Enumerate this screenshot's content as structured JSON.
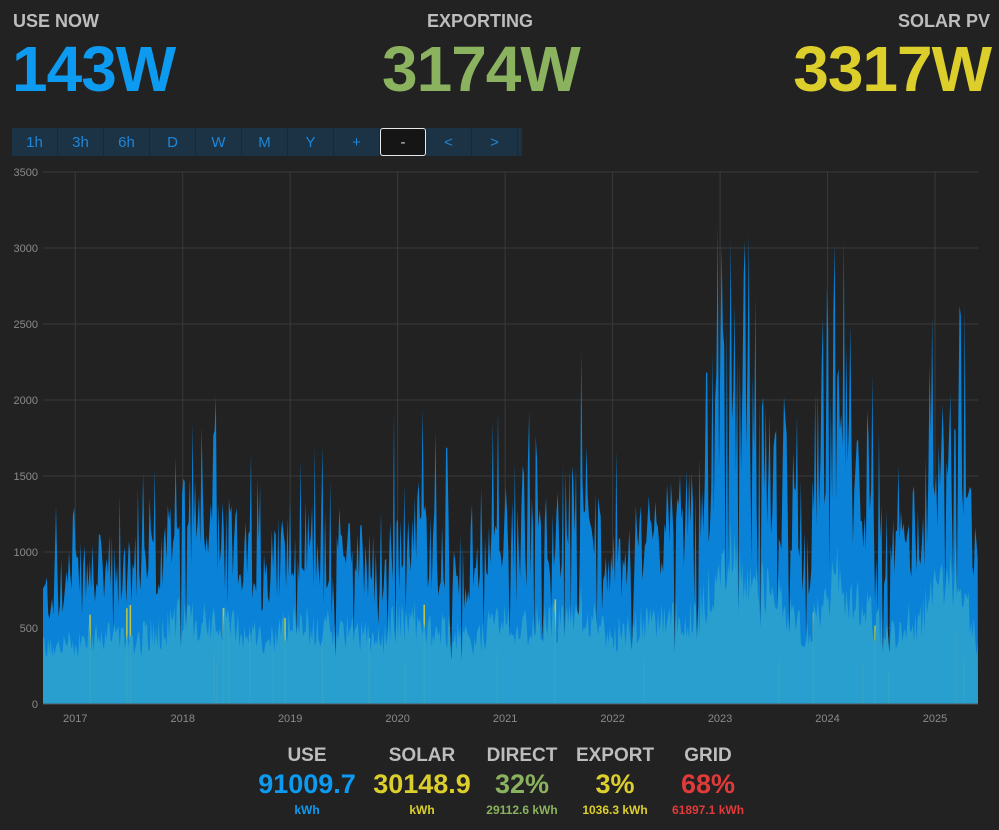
{
  "header": {
    "use": {
      "label": "USE NOW",
      "value": "143W",
      "color": "#0d9bf1"
    },
    "export": {
      "label": "EXPORTING",
      "value": "3174W",
      "color": "#8bb25e"
    },
    "solar": {
      "label": "SOLAR PV",
      "value": "3317W",
      "color": "#dccf2c"
    }
  },
  "timebar": {
    "buttons": [
      "1h",
      "3h",
      "6h",
      "D",
      "W",
      "M",
      "Y",
      "+",
      "-",
      "<",
      ">"
    ],
    "active": "-"
  },
  "chart_data": {
    "type": "area",
    "y_ticks": [
      "0",
      "500",
      "1000",
      "1500",
      "2000",
      "2500",
      "3000",
      "3500"
    ],
    "x_ticks": [
      "2017",
      "2018",
      "2019",
      "2020",
      "2021",
      "2022",
      "2023",
      "2024",
      "2025"
    ],
    "ylim": [
      0,
      3500
    ],
    "xlim": [
      2016.7,
      2025.4
    ],
    "grid": true,
    "series": [
      {
        "color": "#0a82d8"
      },
      {
        "color": "#dccf2c"
      },
      {
        "color": "#2aa0cf"
      }
    ],
    "approx_daily_peak_envelope": [
      [
        2016.7,
        900
      ],
      [
        2017.0,
        1050
      ],
      [
        2017.3,
        1150
      ],
      [
        2017.6,
        1100
      ],
      [
        2017.9,
        1350
      ],
      [
        2018.0,
        1600
      ],
      [
        2018.2,
        1450
      ],
      [
        2018.5,
        1300
      ],
      [
        2018.8,
        1050
      ],
      [
        2019.0,
        1450
      ],
      [
        2019.2,
        1350
      ],
      [
        2019.5,
        1300
      ],
      [
        2019.7,
        1200
      ],
      [
        2019.85,
        1050
      ],
      [
        2020.0,
        1550
      ],
      [
        2020.2,
        1400
      ],
      [
        2020.5,
        1200
      ],
      [
        2020.7,
        1000
      ],
      [
        2020.9,
        1400
      ],
      [
        2021.0,
        1500
      ],
      [
        2021.2,
        1350
      ],
      [
        2021.5,
        1450
      ],
      [
        2021.7,
        1700
      ],
      [
        2021.9,
        1300
      ],
      [
        2022.0,
        1150
      ],
      [
        2022.2,
        1350
      ],
      [
        2022.5,
        1450
      ],
      [
        2022.8,
        1600
      ],
      [
        2023.0,
        2300
      ],
      [
        2023.1,
        2700
      ],
      [
        2023.3,
        2200
      ],
      [
        2023.6,
        1700
      ],
      [
        2023.8,
        1150
      ],
      [
        2024.0,
        2000
      ],
      [
        2024.1,
        2300
      ],
      [
        2024.3,
        1700
      ],
      [
        2024.6,
        1200
      ],
      [
        2024.9,
        1600
      ],
      [
        2025.1,
        2200
      ],
      [
        2025.2,
        2400
      ],
      [
        2025.4,
        1000
      ]
    ]
  },
  "summary": [
    {
      "title": "USE",
      "value": "91009.7",
      "unit": "kWh",
      "color": "#0d9bf1"
    },
    {
      "title": "SOLAR",
      "value": "30148.9",
      "unit": "kWh",
      "color": "#dccf2c"
    },
    {
      "title": "DIRECT",
      "value": "32%",
      "unit": "29112.6 kWh",
      "color": "#8bb25e"
    },
    {
      "title": "EXPORT",
      "value": "3%",
      "unit": "1036.3 kWh",
      "color": "#dccf2c"
    },
    {
      "title": "GRID",
      "value": "68%",
      "unit": "61897.1 kWh",
      "color": "#e03a3a"
    }
  ]
}
